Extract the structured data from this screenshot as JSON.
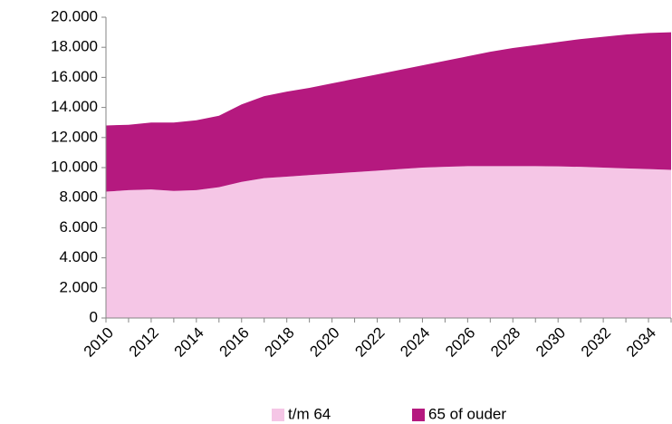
{
  "chart_data": {
    "type": "stacked_area",
    "x": [
      2010,
      2011,
      2012,
      2013,
      2014,
      2015,
      2016,
      2017,
      2018,
      2019,
      2020,
      2021,
      2022,
      2023,
      2024,
      2025,
      2026,
      2027,
      2028,
      2029,
      2030,
      2031,
      2032,
      2033,
      2034,
      2035
    ],
    "xlim": [
      2010,
      2035
    ],
    "xticks": [
      2010,
      2012,
      2014,
      2016,
      2018,
      2020,
      2022,
      2024,
      2026,
      2028,
      2030,
      2032,
      2034
    ],
    "ylim": [
      0,
      20000
    ],
    "yticks": [
      0,
      {
        "value": 2000,
        "label": "2.000"
      },
      {
        "value": 4000,
        "label": "4.000"
      },
      {
        "value": 6000,
        "label": "6.000"
      },
      {
        "value": 8000,
        "label": "8.000"
      },
      {
        "value": 10000,
        "label": "10.000"
      },
      {
        "value": 12000,
        "label": "12.000"
      },
      {
        "value": 14000,
        "label": "14.000"
      },
      {
        "value": 16000,
        "label": "16.000"
      },
      {
        "value": 18000,
        "label": "18.000"
      },
      {
        "value": 20000,
        "label": "20.000"
      }
    ],
    "legend": "bottom",
    "series": [
      {
        "name": "t/m 64",
        "color": "#f5c6e6",
        "values": [
          8400,
          8500,
          8550,
          8450,
          8500,
          8700,
          9050,
          9300,
          9400,
          9500,
          9600,
          9700,
          9800,
          9900,
          10000,
          10050,
          10100,
          10100,
          10100,
          10100,
          10080,
          10050,
          10000,
          9950,
          9900,
          9850
        ]
      },
      {
        "name": "65 of ouder",
        "color": "#b5197f",
        "values": [
          4400,
          4350,
          4450,
          4550,
          4650,
          4750,
          5150,
          5450,
          5650,
          5800,
          6000,
          6200,
          6400,
          6600,
          6800,
          7050,
          7300,
          7600,
          7850,
          8050,
          8270,
          8500,
          8700,
          8900,
          9050,
          9150
        ]
      }
    ]
  }
}
